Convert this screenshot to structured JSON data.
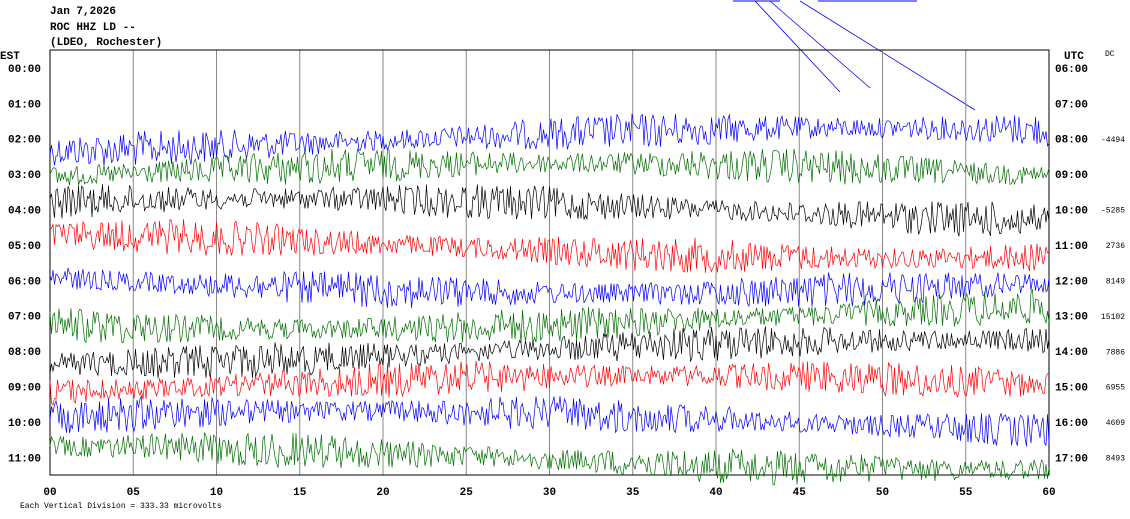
{
  "header": {
    "date": "Jan 7,2026",
    "station": "ROC HHZ LD --",
    "network": "(LDEO, Rochester)"
  },
  "left_axis": {
    "title": "EST",
    "labels": [
      "00:00",
      "01:00",
      "02:00",
      "03:00",
      "04:00",
      "05:00",
      "06:00",
      "07:00",
      "08:00",
      "09:00",
      "10:00",
      "11:00"
    ]
  },
  "right_axis": {
    "title": "UTC",
    "labels": [
      "06:00",
      "07:00",
      "08:00",
      "09:00",
      "10:00",
      "11:00",
      "12:00",
      "13:00",
      "14:00",
      "15:00",
      "16:00",
      "17:00"
    ]
  },
  "dc": {
    "title": "DC",
    "values": [
      null,
      null,
      -4494,
      null,
      -5285,
      2736,
      8149,
      15102,
      7886,
      6955,
      4609,
      8493
    ]
  },
  "x_axis": {
    "labels": [
      "00",
      "05",
      "10",
      "15",
      "20",
      "25",
      "30",
      "35",
      "40",
      "45",
      "50",
      "55",
      "60"
    ]
  },
  "trace_colors": [
    null,
    null,
    "#0000ff",
    "#007000",
    "#000000",
    "#ff0000",
    "#0000ff",
    "#007000",
    "#000000",
    "#ff0000",
    "#0000ff",
    "#007000"
  ],
  "footer": "Each Vertical Division =  333.33 microvolts"
}
